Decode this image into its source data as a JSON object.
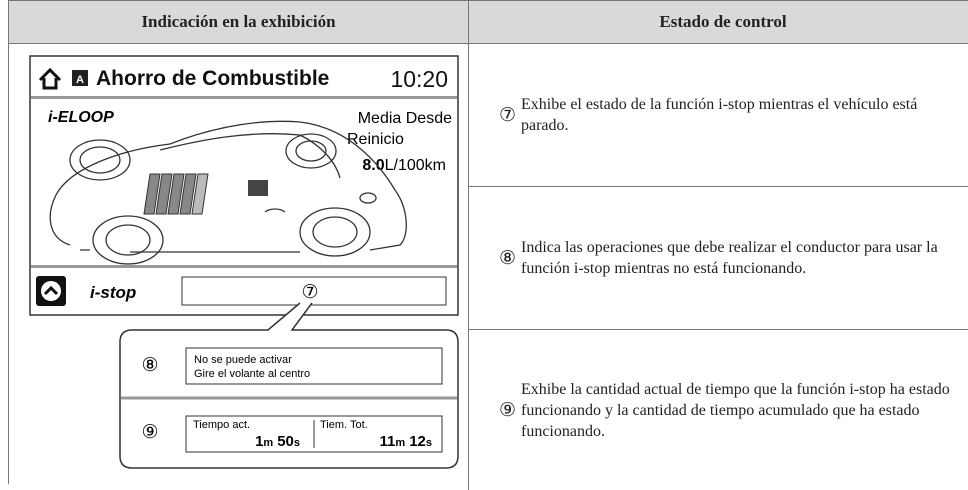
{
  "table": {
    "headers": [
      "Indicación en la exhibición",
      "Estado de control"
    ],
    "rows": [
      {
        "marker": "⑦",
        "text": "Exhibe el estado de la función i-stop mientras el vehículo está parado."
      },
      {
        "marker": "⑧",
        "text": "Indica las operaciones que debe realizar el conductor para usar la función i-stop mientras no está funcionando."
      },
      {
        "marker": "⑨",
        "text": "Exhibe la cantidad actual de tiempo que la función i-stop ha estado funcionando y la cantidad de tiempo acumulado que ha estado funcionando."
      }
    ]
  },
  "display": {
    "title": "Ahorro de Combustible",
    "time": "10:20",
    "brand": "i-ELOOP",
    "average_label": [
      "Media Desde",
      "Reinicio"
    ],
    "economy_value": "8.0",
    "economy_unit": "L/100km",
    "istop_label": "i-stop",
    "istop_marker": "⑦",
    "callout": {
      "message_marker": "⑧",
      "message": [
        "No se puede activar",
        "Gire el volante al centro"
      ],
      "time_marker": "⑨",
      "current": {
        "label": "Tiempo act.",
        "minutes": "1",
        "minutes_unit": "m",
        "seconds": "50",
        "seconds_unit": "s"
      },
      "total": {
        "label": "Tiem. Tot.",
        "minutes": "11",
        "minutes_unit": "m",
        "seconds": "12",
        "seconds_unit": "s"
      }
    }
  }
}
